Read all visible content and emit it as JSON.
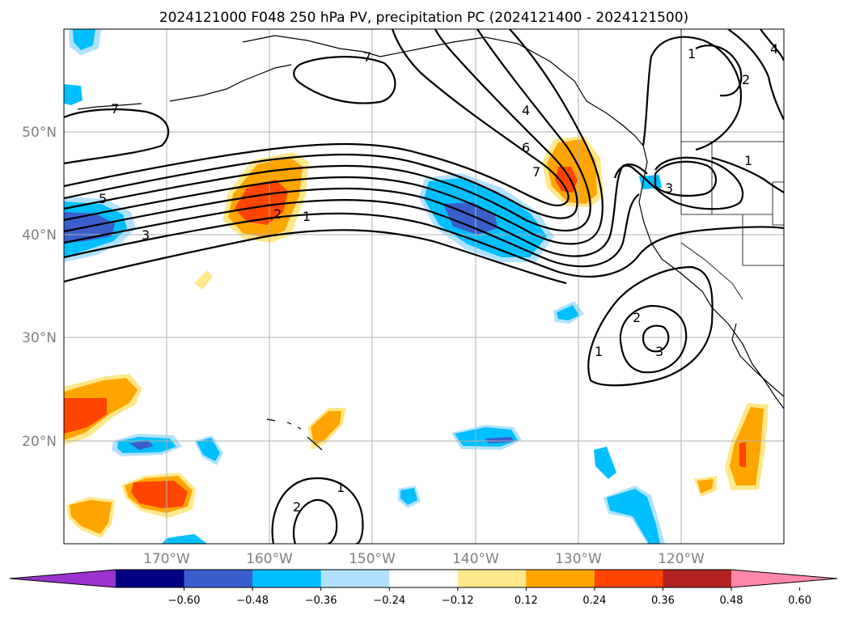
{
  "title": "2024121000 F048 250 hPa PV, precipitation PC (2024121400 - 2024121500)",
  "lat_labels": [
    "50°N",
    "40°N",
    "30°N",
    "20°N"
  ],
  "lon_labels": [
    "170°W",
    "160°W",
    "150°W",
    "140°W",
    "130°W",
    "120°W"
  ],
  "contour_labels": [
    "7",
    "7",
    "5",
    "3",
    "2",
    "1",
    "4",
    "6",
    "7",
    "3",
    "1",
    "2",
    "4",
    "1",
    "2",
    "3",
    "1",
    "1",
    "2"
  ],
  "colorbar": {
    "tick_labels": [
      "−0.60",
      "−0.48",
      "−0.36",
      "−0.24",
      "−0.12",
      "0.12",
      "0.24",
      "0.36",
      "0.48",
      "0.60"
    ],
    "bins": [
      {
        "color": "#9933cc"
      },
      {
        "color": "#000080"
      },
      {
        "color": "#3a5fcd"
      },
      {
        "color": "#00bfff"
      },
      {
        "color": "#b0e2ff"
      },
      {
        "color": "#ffffff"
      },
      {
        "color": "#ffe88a"
      },
      {
        "color": "#ffa500"
      },
      {
        "color": "#ff4500"
      },
      {
        "color": "#b22222"
      },
      {
        "color": "#ff88aa"
      }
    ]
  },
  "colors": {
    "lightblue": "#b0e2ff",
    "blue": "#00bfff",
    "royalblue": "#3a5fcd",
    "yellow": "#ffe88a",
    "orange": "#ffa500",
    "red": "#ff4500"
  }
}
